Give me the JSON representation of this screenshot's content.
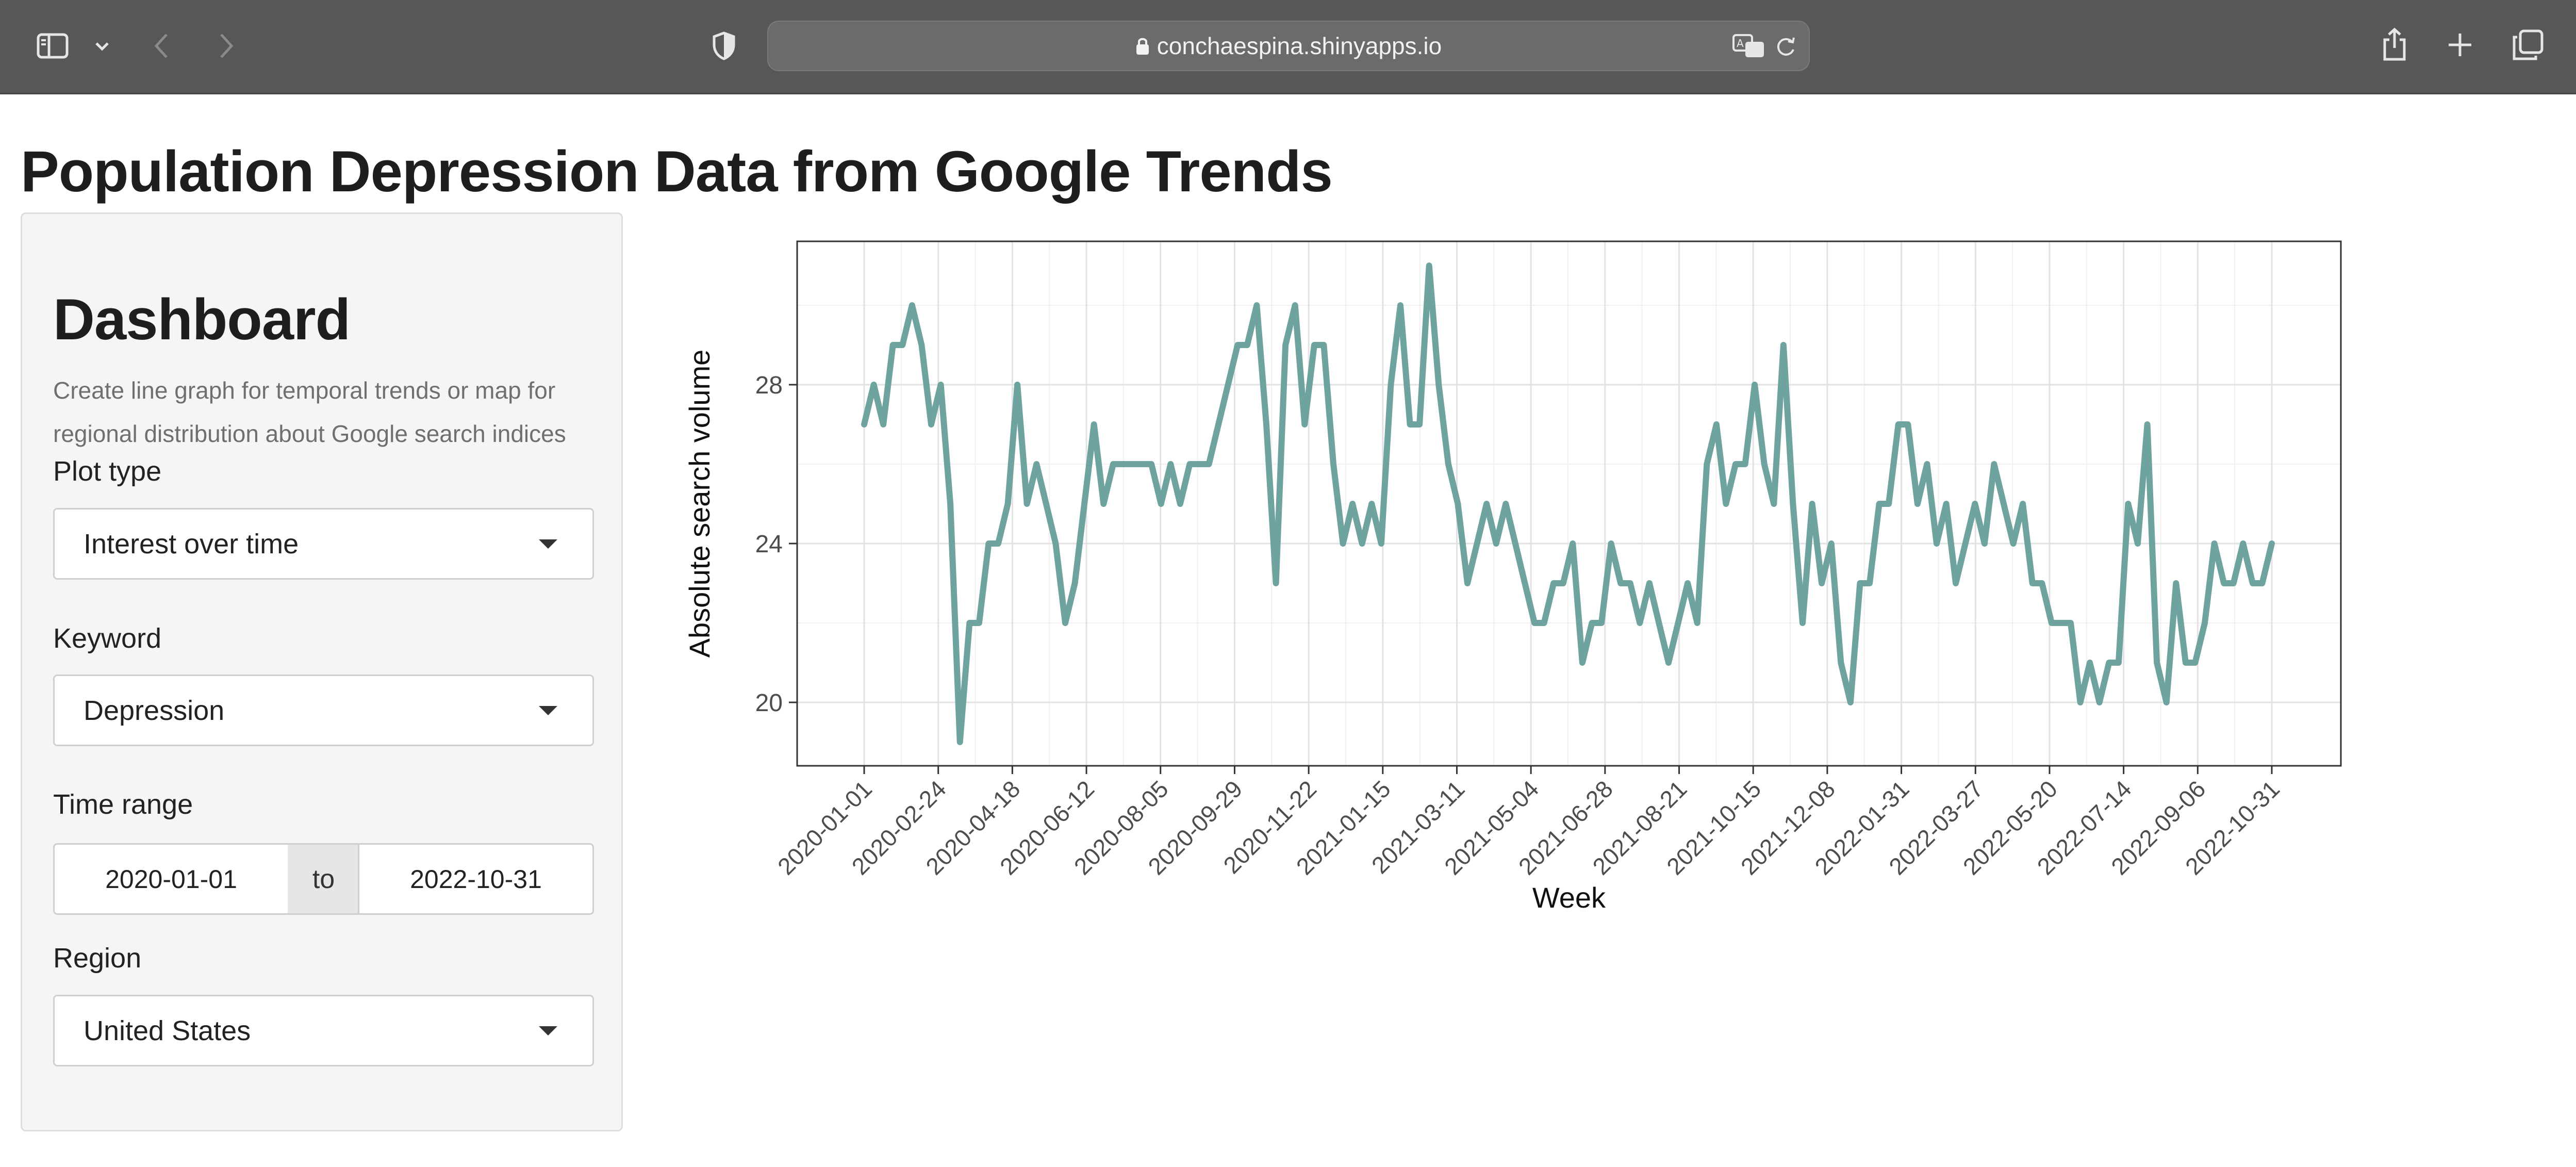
{
  "browser": {
    "url": "conchaespina.shinyapps.io",
    "icons": [
      "sidebar-icon",
      "chevron-down-icon",
      "back-icon",
      "forward-icon",
      "shield-icon",
      "lock-icon",
      "translate-icon",
      "reload-icon",
      "share-icon",
      "new-tab-icon",
      "tabs-overview-icon"
    ]
  },
  "page": {
    "title": "Population Depression Data from Google Trends"
  },
  "sidebar": {
    "heading": "Dashboard",
    "description": "Create line graph for temporal trends or map for regional distribution about Google search indices",
    "plot_type": {
      "label": "Plot type",
      "value": "Interest over time"
    },
    "keyword": {
      "label": "Keyword",
      "value": "Depression"
    },
    "time_range": {
      "label": "Time range",
      "start": "2020-01-01",
      "separator": "to",
      "end": "2022-10-31"
    },
    "region": {
      "label": "Region",
      "value": "United States"
    }
  },
  "chart_data": {
    "type": "line",
    "xlabel": "Week",
    "ylabel": "Absolute search volume",
    "yticks": [
      20,
      24,
      28
    ],
    "ylim": [
      18.2,
      31.3
    ],
    "xtick_labels": [
      "2020-01-01",
      "2020-02-24",
      "2020-04-18",
      "2020-06-12",
      "2020-08-05",
      "2020-09-29",
      "2020-11-22",
      "2021-01-15",
      "2021-03-11",
      "2021-05-04",
      "2021-06-28",
      "2021-08-21",
      "2021-10-15",
      "2021-12-08",
      "2022-01-31",
      "2022-03-27",
      "2022-05-20",
      "2022-07-14",
      "2022-09-06",
      "2022-10-31"
    ],
    "grid": true,
    "line_color": "#6fa3a0",
    "values": [
      27,
      28,
      27,
      29,
      29,
      30,
      29,
      27,
      28,
      25,
      19,
      22,
      22,
      24,
      24,
      25,
      28,
      25,
      26,
      25,
      24,
      22,
      23,
      25,
      27,
      25,
      26,
      26,
      26,
      26,
      26,
      25,
      26,
      25,
      26,
      26,
      26,
      27,
      28,
      29,
      29,
      30,
      27,
      23,
      29,
      30,
      27,
      29,
      29,
      26,
      24,
      25,
      24,
      25,
      24,
      28,
      30,
      27,
      27,
      31,
      28,
      26,
      25,
      23,
      24,
      25,
      24,
      25,
      24,
      23,
      22,
      22,
      23,
      23,
      24,
      21,
      22,
      22,
      24,
      23,
      23,
      22,
      23,
      22,
      21,
      22,
      23,
      22,
      26,
      27,
      25,
      26,
      26,
      28,
      26,
      25,
      29,
      25,
      22,
      25,
      23,
      24,
      21,
      20,
      23,
      23,
      25,
      25,
      27,
      27,
      25,
      26,
      24,
      25,
      23,
      24,
      25,
      24,
      26,
      25,
      24,
      25,
      23,
      23,
      22,
      22,
      22,
      20,
      21,
      20,
      21,
      21,
      25,
      24,
      27,
      21,
      20,
      23,
      21,
      21,
      22,
      24,
      23,
      23,
      24,
      23,
      23,
      24
    ]
  }
}
